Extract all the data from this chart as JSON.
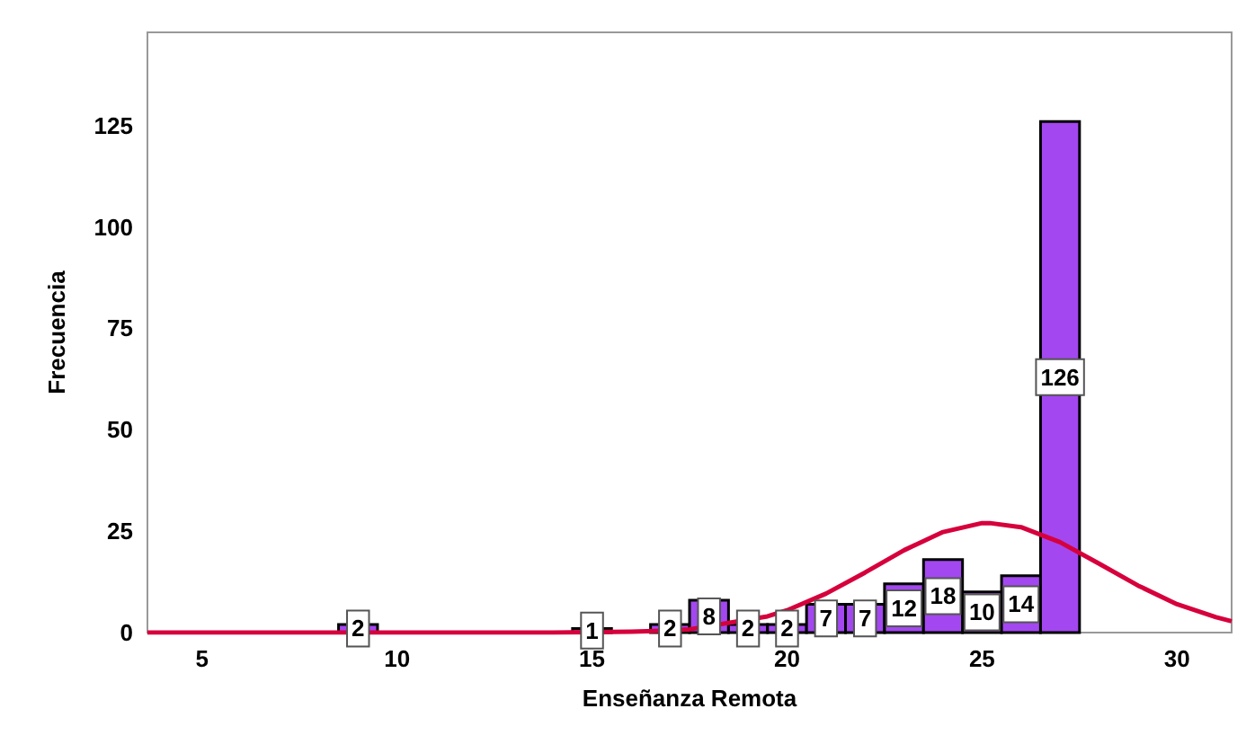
{
  "chart_data": {
    "type": "histogram",
    "xlabel": "Enseñanza Remota",
    "ylabel": "Frecuencia",
    "bins": [
      8.5,
      9.5,
      10.5,
      11.5,
      12.5,
      13.5,
      14.5,
      15.5,
      16.5,
      17.5,
      18.5,
      19.5,
      20.5,
      21.5,
      22.5,
      23.5,
      24.5,
      25.5,
      26.5,
      27.5
    ],
    "values": [
      2,
      0,
      0,
      0,
      0,
      0,
      1,
      0,
      2,
      8,
      2,
      2,
      7,
      7,
      12,
      18,
      10,
      14,
      126
    ],
    "value_labels": [
      "2",
      null,
      null,
      null,
      null,
      null,
      "1",
      null,
      "2",
      "8",
      "2",
      "2",
      "7",
      "7",
      "12",
      "18",
      "10",
      "14",
      "126"
    ],
    "color": "#a347f0",
    "series": [
      {
        "type": "line",
        "color": "#d6003c",
        "x": [
          3.6,
          8,
          12,
          14,
          15,
          16,
          17,
          17.5,
          19.5,
          20,
          21,
          22,
          23,
          24,
          25,
          25.2,
          26,
          27,
          28,
          29,
          30,
          31,
          31.4
        ],
        "values": [
          0,
          0,
          0,
          0,
          0.1,
          0.2,
          0.5,
          0.8,
          4,
          5.5,
          9.6,
          14.8,
          20.3,
          24.8,
          27,
          27,
          26,
          22.3,
          17,
          11.6,
          7,
          3.8,
          2.8
        ]
      }
    ],
    "xlim": [
      3.6,
      31.4
    ],
    "xticks": [
      5,
      10,
      15,
      20,
      25,
      30
    ],
    "ylim": [
      0,
      148
    ],
    "yticks": [
      0,
      25,
      50,
      75,
      100,
      125
    ],
    "grid": false,
    "marker": "none",
    "line_style": "solid"
  }
}
